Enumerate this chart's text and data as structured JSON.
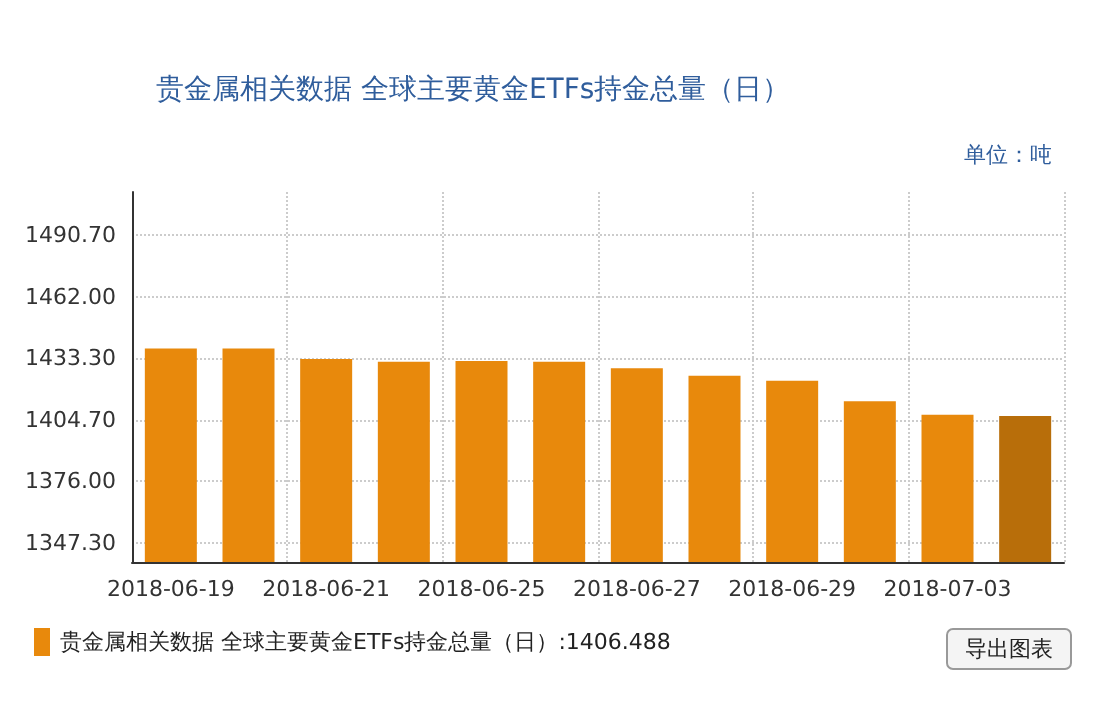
{
  "chart_data": {
    "type": "bar",
    "title": "贵金属相关数据 全球主要黄金ETFs持金总量（日）",
    "categories": [
      "2018-06-19",
      null,
      "2018-06-21",
      null,
      "2018-06-25",
      null,
      "2018-06-27",
      null,
      "2018-06-29",
      null,
      "2018-07-03",
      null
    ],
    "series": [
      {
        "name": "贵金属相关数据 全球主要黄金ETFs持金总量（日）:1406.488",
        "color": "#e8890c",
        "colors": [
          "#e8890c",
          "#e8890c",
          "#e8890c",
          "#e8890c",
          "#e8890c",
          "#e8890c",
          "#e8890c",
          "#e8890c",
          "#e8890c",
          "#e8890c",
          "#e8890c",
          "#b86e0a"
        ],
        "values": [
          1437.9,
          1437.9,
          1433.0,
          1431.8,
          1432.1,
          1431.8,
          1428.7,
          1425.2,
          1422.9,
          1413.4,
          1407.0,
          1406.488
        ]
      }
    ],
    "ylim": [
      1338.4,
      1510.9
    ],
    "yticks": [
      {
        "value": 1347.3,
        "label": "1347.30"
      },
      {
        "value": 1376,
        "label": "1376.00"
      },
      {
        "value": 1404.7,
        "label": "1404.70"
      },
      {
        "value": 1433.3,
        "label": "1433.30"
      },
      {
        "value": 1462,
        "label": "1462.00"
      },
      {
        "value": 1490.7,
        "label": "1490.70"
      }
    ],
    "grid": true,
    "legend": "bottom left",
    "annotations": [
      "单位：吨",
      "导出图表"
    ]
  }
}
